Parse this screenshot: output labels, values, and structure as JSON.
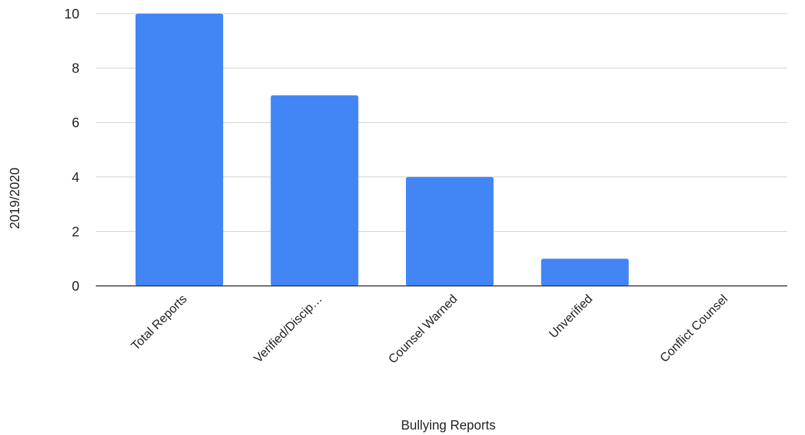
{
  "chart_data": {
    "type": "bar",
    "title": "",
    "xlabel": "Bullying Reports",
    "ylabel": "2019/2020",
    "categories": [
      "Total Reports",
      "Verified/Discip…",
      "Counsel Warned",
      "Unverified",
      "Conflict Counsel"
    ],
    "values": [
      10,
      7,
      4,
      1,
      0
    ],
    "ylim": [
      0,
      10
    ],
    "yticks": [
      0,
      2,
      4,
      6,
      8,
      10
    ],
    "grid": true,
    "legend": "none",
    "bar_color": "#4285f4"
  }
}
